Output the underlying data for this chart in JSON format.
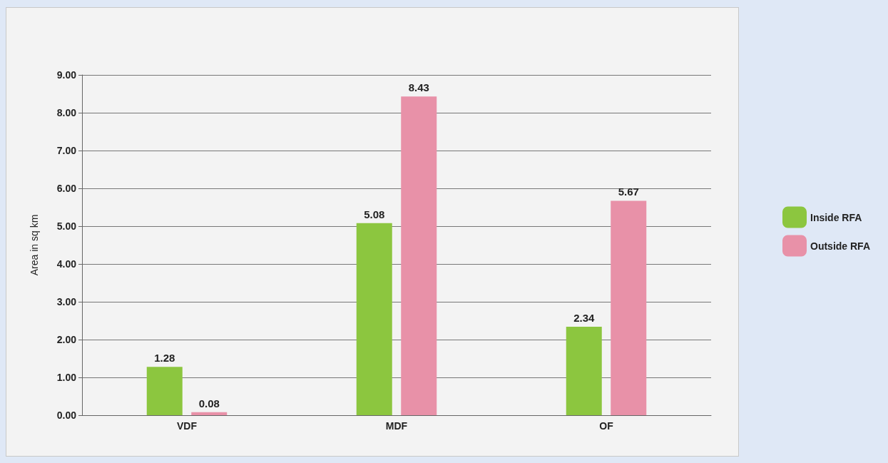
{
  "chart_data": {
    "type": "bar",
    "ylabel": "Area in sq km",
    "categories": [
      "VDF",
      "MDF",
      "OF"
    ],
    "series": [
      {
        "name": "Inside RFA",
        "color": "#8cc63f",
        "values": [
          1.28,
          5.08,
          2.34
        ]
      },
      {
        "name": "Outside RFA",
        "color": "#e891a8",
        "values": [
          0.08,
          8.43,
          5.67
        ]
      }
    ],
    "ylim": [
      0,
      9
    ],
    "yticks": [
      {
        "value": 0,
        "label": "0.00"
      },
      {
        "value": 1,
        "label": "1.00"
      },
      {
        "value": 2,
        "label": "2.00"
      },
      {
        "value": 3,
        "label": "3.00"
      },
      {
        "value": 4,
        "label": "4.00"
      },
      {
        "value": 5,
        "label": "5.00"
      },
      {
        "value": 6,
        "label": "6.00"
      },
      {
        "value": 7,
        "label": "7.00"
      },
      {
        "value": 8,
        "label": "8.00"
      },
      {
        "value": 9,
        "label": "9.00"
      }
    ],
    "grid": "y",
    "legend": "right",
    "data_labels": true
  }
}
